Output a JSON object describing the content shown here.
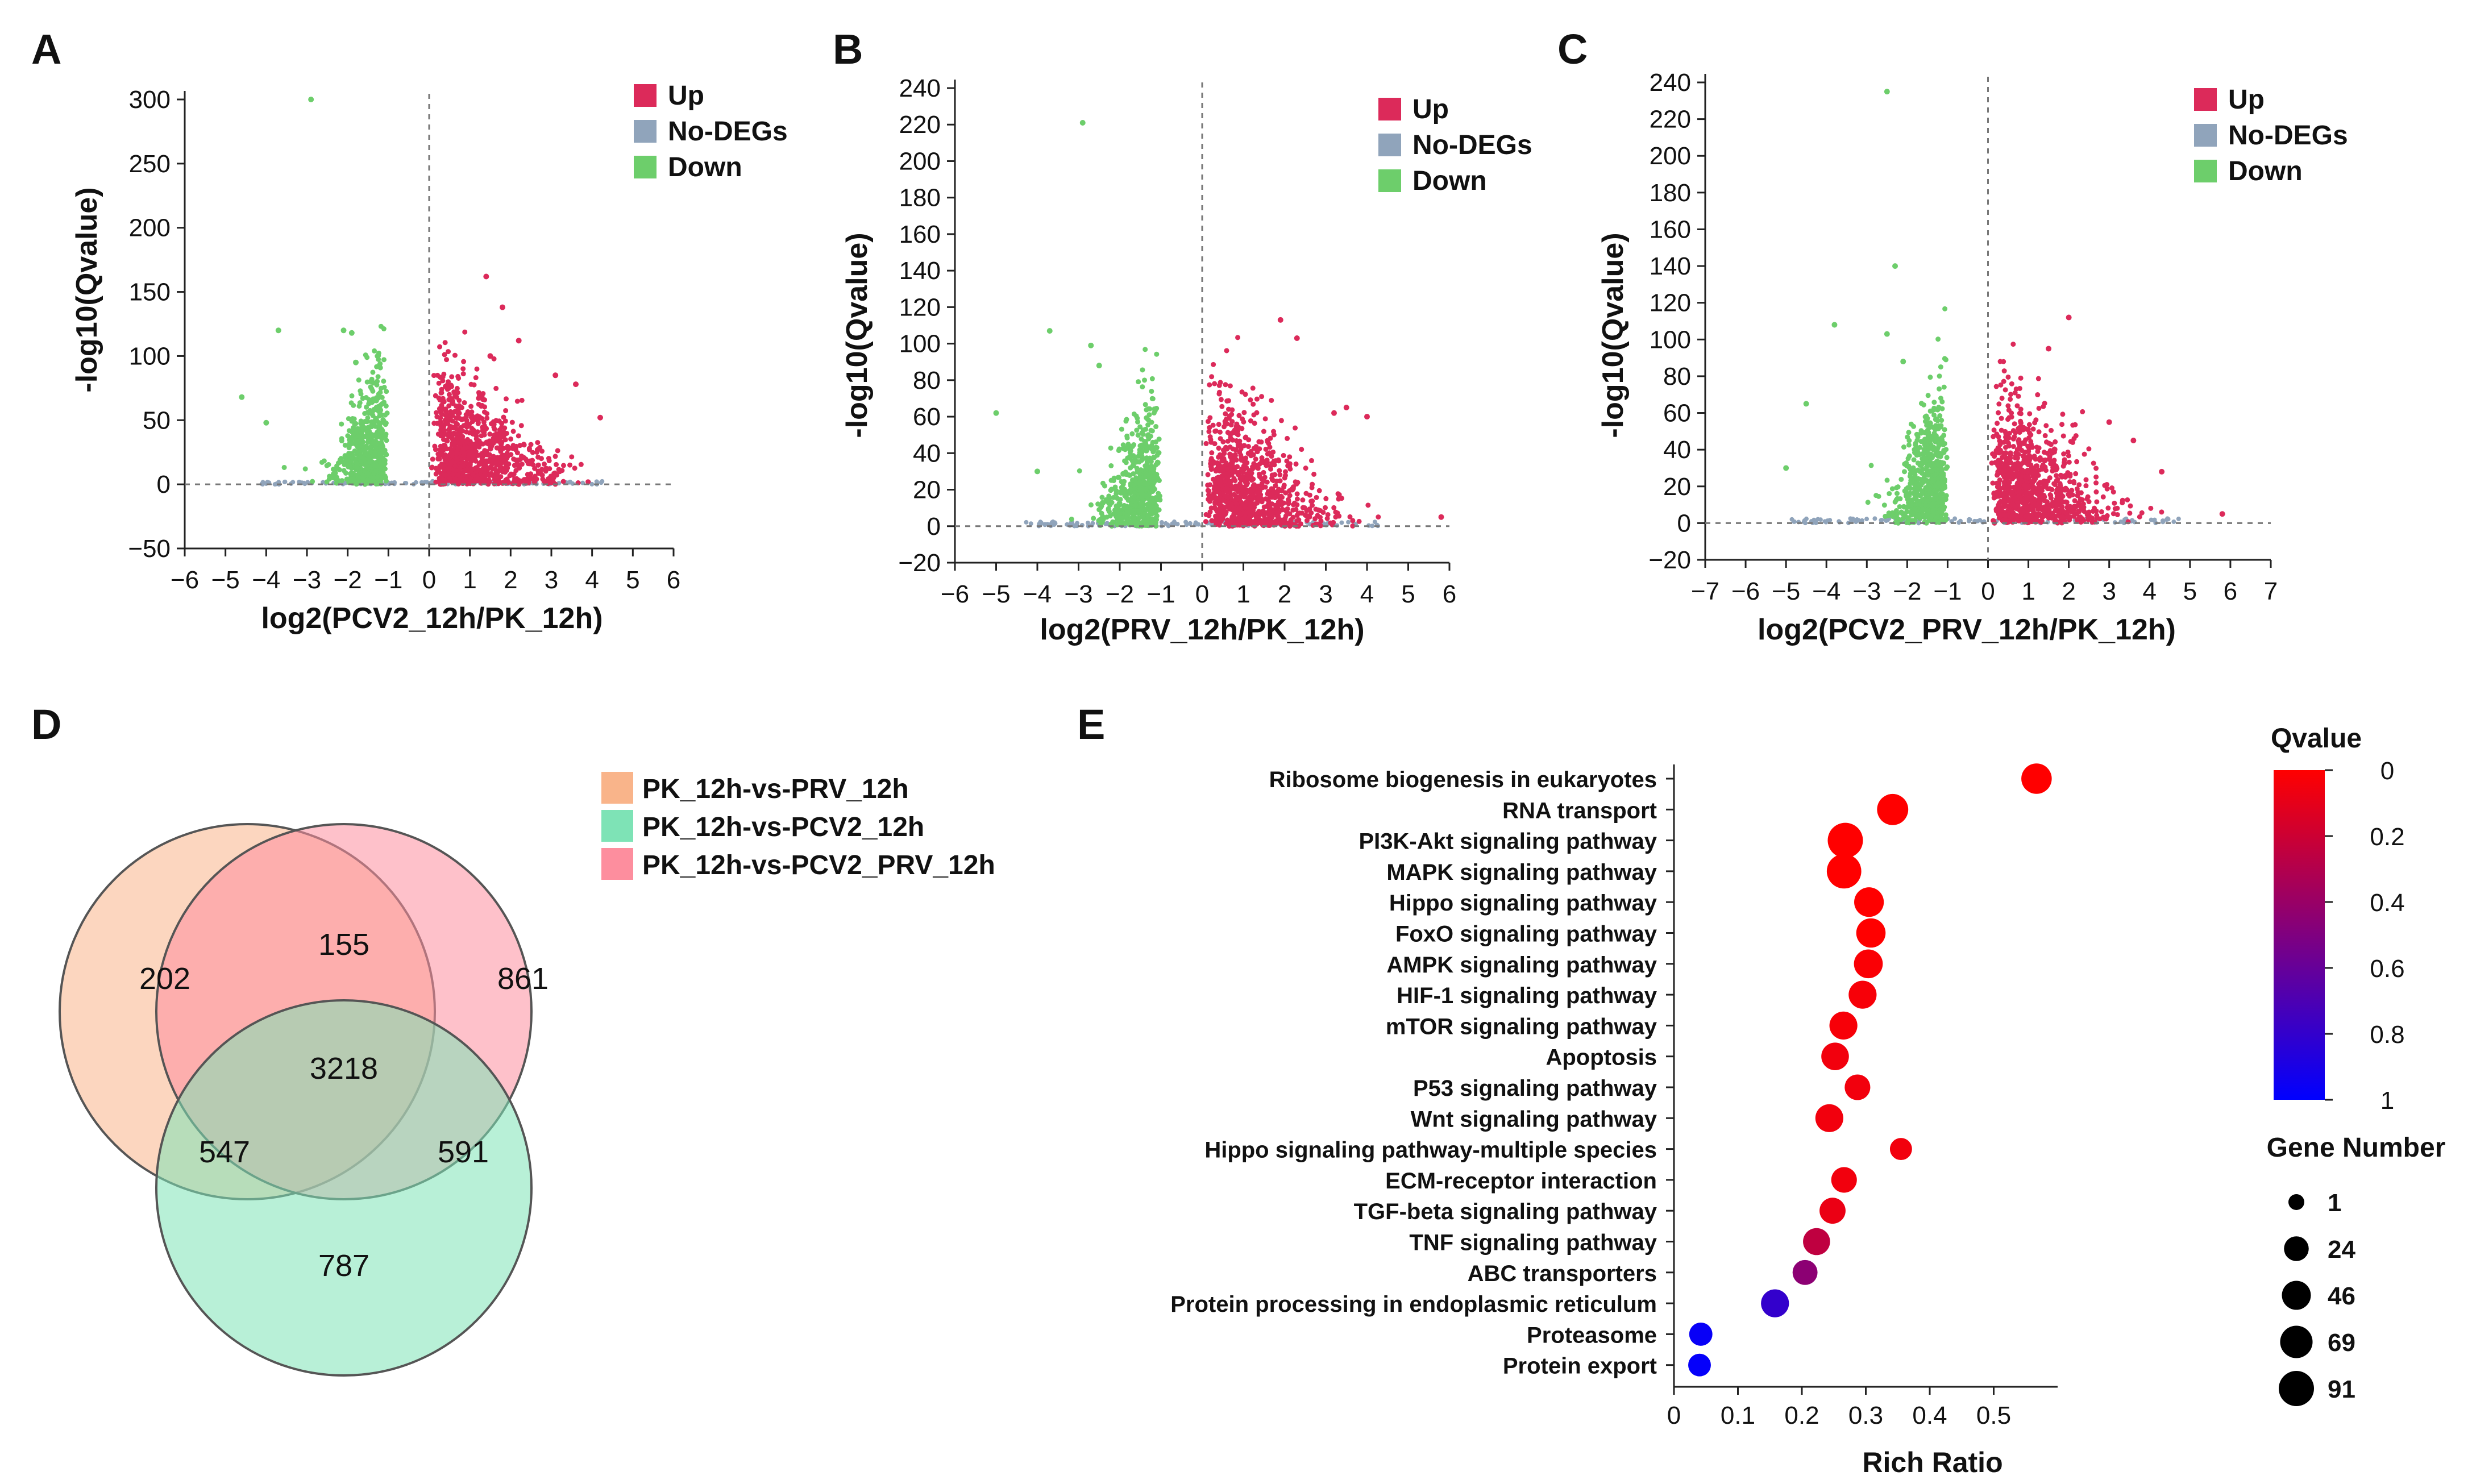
{
  "colors": {
    "up": "#dc2a5a",
    "nodeg": "#90a4bb",
    "down": "#6dce6b",
    "venn": [
      "#f9b48a",
      "#fd8e9e",
      "#7ee3b6"
    ],
    "highlight": "#7a35b8"
  },
  "chart_data": [
    {
      "id": "A",
      "type": "scatter",
      "panel_label": "A",
      "xlabel": "log2(PCV2_12h/PK_12h)",
      "ylabel": "-log10(Qvalue)",
      "xlim": [
        -6,
        6
      ],
      "ylim": [
        -50,
        300
      ],
      "xticks": [
        -6,
        -5,
        -4,
        -3,
        -2,
        -1,
        0,
        1,
        2,
        3,
        4,
        5,
        6
      ],
      "yticks": [
        -50,
        0,
        50,
        100,
        150,
        200,
        250,
        300
      ],
      "xtick_labels": [
        "−6",
        "−5",
        "−4",
        "−3",
        "−2",
        "−1",
        "0",
        "1",
        "2",
        "3",
        "4",
        "5",
        "6"
      ],
      "ytick_labels": [
        "−50",
        "0",
        "50",
        "100",
        "150",
        "200",
        "250",
        "300"
      ],
      "legend": [
        "Up",
        "No-DEGs",
        "Down"
      ],
      "legend_position": "top-right",
      "outliers_up": [
        [
          1.4,
          162
        ],
        [
          1.8,
          138
        ],
        [
          2.2,
          112
        ],
        [
          3.1,
          85
        ],
        [
          3.6,
          78
        ],
        [
          4.2,
          52
        ],
        [
          1.5,
          100
        ]
      ],
      "outliers_down": [
        [
          -2.9,
          300
        ],
        [
          -3.7,
          120
        ],
        [
          -2.1,
          120
        ],
        [
          -1.9,
          118
        ],
        [
          -4.6,
          68
        ],
        [
          -4.0,
          48
        ],
        [
          -1.8,
          95
        ]
      ],
      "seed": 11
    },
    {
      "id": "B",
      "type": "scatter",
      "panel_label": "B",
      "xlabel": "log2(PRV_12h/PK_12h)",
      "ylabel": "-log10(Qvalue)",
      "xlim": [
        -6,
        6
      ],
      "ylim": [
        -20,
        240
      ],
      "xticks": [
        -6,
        -5,
        -4,
        -3,
        -2,
        -1,
        0,
        1,
        2,
        3,
        4,
        5,
        6
      ],
      "yticks": [
        -20,
        0,
        20,
        40,
        60,
        80,
        100,
        120,
        140,
        160,
        180,
        200,
        220,
        240
      ],
      "xtick_labels": [
        "−6",
        "−5",
        "−4",
        "−3",
        "−2",
        "−1",
        "0",
        "1",
        "2",
        "3",
        "4",
        "5",
        "6"
      ],
      "ytick_labels": [
        "−20",
        "0",
        "20",
        "40",
        "60",
        "80",
        "100",
        "120",
        "140",
        "160",
        "180",
        "200",
        "220",
        "240"
      ],
      "legend": [
        "Up",
        "No-DEGs",
        "Down"
      ],
      "legend_position": "top-right",
      "outliers_up": [
        [
          1.9,
          113
        ],
        [
          2.3,
          103
        ],
        [
          3.5,
          65
        ],
        [
          3.2,
          62
        ],
        [
          4.0,
          60
        ],
        [
          5.8,
          5
        ]
      ],
      "outliers_down": [
        [
          -2.9,
          221
        ],
        [
          -3.7,
          107
        ],
        [
          -2.7,
          99
        ],
        [
          -2.5,
          88
        ],
        [
          -5.0,
          62
        ],
        [
          -4.0,
          30
        ]
      ],
      "seed": 23
    },
    {
      "id": "C",
      "type": "scatter",
      "panel_label": "C",
      "xlabel": "log2(PCV2_PRV_12h/PK_12h)",
      "ylabel": "-log10(Qvalue)",
      "xlim": [
        -7,
        7
      ],
      "ylim": [
        -20,
        240
      ],
      "xticks": [
        -7,
        -6,
        -5,
        -4,
        -3,
        -2,
        -1,
        0,
        1,
        2,
        3,
        4,
        5,
        6,
        7
      ],
      "yticks": [
        -20,
        0,
        20,
        40,
        60,
        80,
        100,
        120,
        140,
        160,
        180,
        200,
        220,
        240
      ],
      "xtick_labels": [
        "−7",
        "−6",
        "−5",
        "−4",
        "−3",
        "−2",
        "−1",
        "0",
        "1",
        "2",
        "3",
        "4",
        "5",
        "6",
        "7"
      ],
      "ytick_labels": [
        "−20",
        "0",
        "20",
        "40",
        "60",
        "80",
        "100",
        "120",
        "140",
        "160",
        "180",
        "200",
        "220",
        "240"
      ],
      "legend": [
        "Up",
        "No-DEGs",
        "Down"
      ],
      "legend_position": "top-right",
      "outliers_up": [
        [
          2.0,
          112
        ],
        [
          1.5,
          95
        ],
        [
          3.0,
          55
        ],
        [
          3.6,
          45
        ],
        [
          4.3,
          28
        ],
        [
          5.8,
          5
        ]
      ],
      "outliers_down": [
        [
          -2.5,
          235
        ],
        [
          -2.3,
          140
        ],
        [
          -3.8,
          108
        ],
        [
          -2.5,
          103
        ],
        [
          -4.5,
          65
        ],
        [
          -5.0,
          30
        ],
        [
          -2.1,
          88
        ]
      ],
      "seed": 37
    },
    {
      "id": "D",
      "type": "venn",
      "panel_label": "D",
      "sets": [
        "PK_12h-vs-PRV_12h",
        "PK_12h-vs-PCV2_12h",
        "PK_12h-vs-PCV2_PRV_12h"
      ],
      "regions": {
        "only_PRV": 202,
        "only_PCV2_PRV": 861,
        "only_PCV2": 787,
        "PRV_and_PCV2_PRV": 155,
        "PRV_and_PCV2": 547,
        "PCV2_and_PCV2_PRV": 591,
        "all_three": 3218
      }
    },
    {
      "id": "E",
      "type": "scatter",
      "subtype": "bubble",
      "panel_label": "E",
      "xlabel": "Rich Ratio",
      "ylabel": "",
      "xlim": [
        0,
        0.6
      ],
      "xticks": [
        0,
        0.1,
        0.2,
        0.3,
        0.4,
        0.5
      ],
      "xtick_labels": [
        "0",
        "0.1",
        "0.2",
        "0.3",
        "0.4",
        "0.5"
      ],
      "pathways": [
        {
          "name": "Ribosome biogenesis in eukaryotes",
          "rich_ratio": 0.567,
          "qvalue": 0.0,
          "gene_number": 55
        },
        {
          "name": "RNA transport",
          "rich_ratio": 0.342,
          "qvalue": 0.0,
          "gene_number": 60
        },
        {
          "name": "PI3K-Akt signaling pathway",
          "rich_ratio": 0.268,
          "qvalue": 0.0,
          "gene_number": 91
        },
        {
          "name": "MAPK signaling pathway",
          "rich_ratio": 0.266,
          "qvalue": 0.0,
          "gene_number": 85
        },
        {
          "name": "Hippo signaling pathway",
          "rich_ratio": 0.305,
          "qvalue": 0.0,
          "gene_number": 50
        },
        {
          "name": "FoxO signaling pathway",
          "rich_ratio": 0.308,
          "qvalue": 0.0,
          "gene_number": 48
        },
        {
          "name": "AMPK signaling pathway",
          "rich_ratio": 0.304,
          "qvalue": 0.02,
          "gene_number": 45
        },
        {
          "name": "HIF-1 signaling pathway",
          "rich_ratio": 0.295,
          "qvalue": 0.03,
          "gene_number": 40
        },
        {
          "name": "mTOR signaling pathway",
          "rich_ratio": 0.265,
          "qvalue": 0.03,
          "gene_number": 40
        },
        {
          "name": "Apoptosis",
          "rich_ratio": 0.252,
          "qvalue": 0.05,
          "gene_number": 38
        },
        {
          "name": "P53 signaling pathway",
          "rich_ratio": 0.287,
          "qvalue": 0.05,
          "gene_number": 28
        },
        {
          "name": "Wnt signaling pathway",
          "rich_ratio": 0.243,
          "qvalue": 0.05,
          "gene_number": 40
        },
        {
          "name": "Hippo signaling pathway-multiple species",
          "rich_ratio": 0.355,
          "qvalue": 0.05,
          "gene_number": 14
        },
        {
          "name": "ECM-receptor interaction",
          "rich_ratio": 0.266,
          "qvalue": 0.05,
          "gene_number": 28
        },
        {
          "name": "TGF-beta signaling pathway",
          "rich_ratio": 0.248,
          "qvalue": 0.08,
          "gene_number": 30
        },
        {
          "name": "TNF signaling pathway",
          "rich_ratio": 0.223,
          "qvalue": 0.25,
          "gene_number": 35
        },
        {
          "name": "ABC transporters",
          "rich_ratio": 0.205,
          "qvalue": 0.45,
          "gene_number": 25
        },
        {
          "name": "Protein processing in endoplasmic reticulum",
          "rich_ratio": 0.158,
          "qvalue": 0.8,
          "gene_number": 40,
          "highlight": true
        },
        {
          "name": "Proteasome",
          "rich_ratio": 0.042,
          "qvalue": 0.97,
          "gene_number": 18
        },
        {
          "name": "Protein export",
          "rich_ratio": 0.04,
          "qvalue": 0.98,
          "gene_number": 16
        }
      ],
      "colorbar": {
        "title": "Qvalue",
        "range": [
          0,
          1
        ],
        "ticks": [
          0,
          0.2,
          0.4,
          0.6,
          0.8,
          1
        ],
        "tick_labels": [
          "0",
          "0.2",
          "0.4",
          "0.6",
          "0.8",
          "1"
        ],
        "colors": [
          "#ff0000",
          "#0000ff"
        ]
      },
      "size_legend": {
        "title": "Gene Number",
        "values": [
          1,
          24,
          46,
          69,
          91
        ]
      }
    }
  ]
}
